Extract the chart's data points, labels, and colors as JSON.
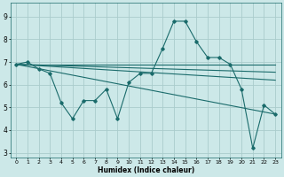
{
  "xlabel": "Humidex (Indice chaleur)",
  "bg_color": "#cce8e8",
  "grid_color": "#aacccc",
  "line_color": "#1a6b6b",
  "xlim": [
    -0.5,
    23.5
  ],
  "ylim": [
    2.8,
    9.6
  ],
  "yticks": [
    3,
    4,
    5,
    6,
    7,
    8,
    9
  ],
  "xticks": [
    0,
    1,
    2,
    3,
    4,
    5,
    6,
    7,
    8,
    9,
    10,
    11,
    12,
    13,
    14,
    15,
    16,
    17,
    18,
    19,
    20,
    21,
    22,
    23
  ],
  "series": [
    {
      "x": [
        0,
        1,
        2,
        3,
        4,
        5,
        6,
        7,
        8,
        9,
        10,
        11,
        12,
        13,
        14,
        15,
        16,
        17,
        18,
        19,
        20,
        21,
        22,
        23
      ],
      "y": [
        6.9,
        7.0,
        6.7,
        6.5,
        5.2,
        4.5,
        5.3,
        5.3,
        5.8,
        4.5,
        6.1,
        6.5,
        6.5,
        7.6,
        8.8,
        8.8,
        7.9,
        7.2,
        7.2,
        6.9,
        5.8,
        3.2,
        5.1,
        4.7
      ],
      "marker": true
    },
    {
      "x": [
        0,
        23
      ],
      "y": [
        6.9,
        6.9
      ],
      "marker": false
    },
    {
      "x": [
        0,
        23
      ],
      "y": [
        6.9,
        6.55
      ],
      "marker": false
    },
    {
      "x": [
        0,
        23
      ],
      "y": [
        6.9,
        6.2
      ],
      "marker": false
    },
    {
      "x": [
        0,
        23
      ],
      "y": [
        6.9,
        4.7
      ],
      "marker": false
    }
  ]
}
